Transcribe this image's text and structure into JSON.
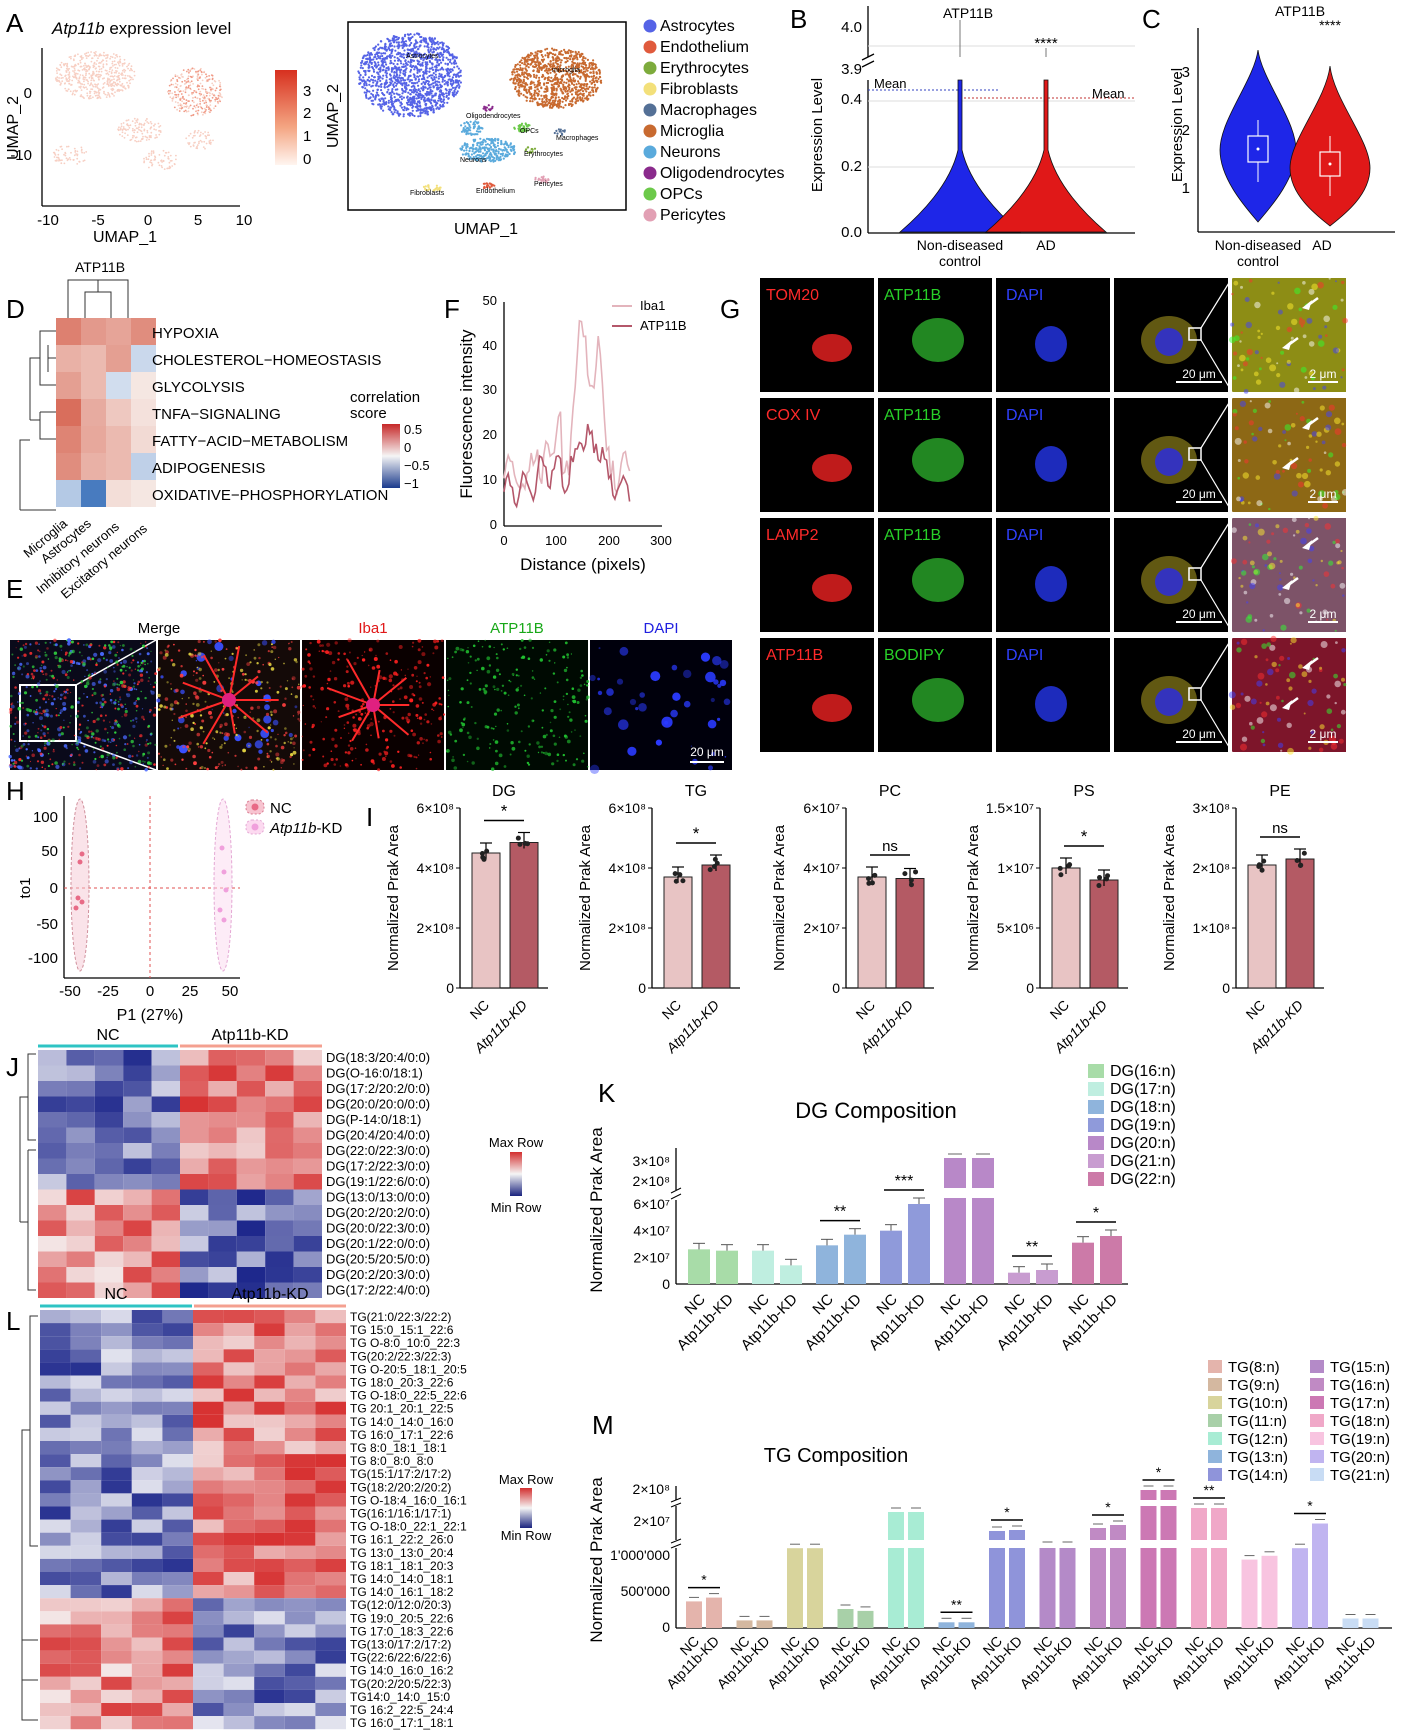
{
  "panelA": {
    "letter": "A",
    "title_gene": "Atp11b",
    "title_rest": " expression level",
    "xlabel": "UMAP_1",
    "ylabel": "UMAP_2",
    "xticks": [
      "-10",
      "-5",
      "0",
      "5",
      "10"
    ],
    "yticks": [
      "0",
      "-10"
    ],
    "colorbar": [
      "3",
      "2",
      "1",
      "0"
    ],
    "umap_xlabel": "UMAP_1",
    "umap_ylabel": "UMAP_2",
    "cluster_labels": [
      "Astrocytes",
      "microglia",
      "Oligodendrocytes",
      "OPCs",
      "Macrophages",
      "Neurons",
      "Erythrocytes",
      "Pericytes",
      "Fibroblasts",
      "Endothelium"
    ],
    "legend": [
      {
        "label": "Astrocytes",
        "color": "#5563e6"
      },
      {
        "label": "Endothelium",
        "color": "#e05a3c"
      },
      {
        "label": "Erythrocytes",
        "color": "#7dab3c"
      },
      {
        "label": "Fibroblasts",
        "color": "#f3e07a"
      },
      {
        "label": "Macrophages",
        "color": "#547096"
      },
      {
        "label": "Microglia",
        "color": "#c86a30"
      },
      {
        "label": "Neurons",
        "color": "#5aaadc"
      },
      {
        "label": "Oligodendrocytes",
        "color": "#8a2a8c"
      },
      {
        "label": "OPCs",
        "color": "#6cc94a"
      },
      {
        "label": "Pericytes",
        "color": "#e2a0b4"
      }
    ]
  },
  "panelB": {
    "letter": "B",
    "title": "ATP11B",
    "ylabel": "Expression Level",
    "yticks_top": [
      "4.0",
      "3.9"
    ],
    "yticks": [
      "0.4",
      "0.2",
      "0.0"
    ],
    "mean_left": "Mean",
    "mean_right": "Mean",
    "sig": "****",
    "groups": [
      "Non-diseased",
      "control",
      "AD"
    ]
  },
  "panelC": {
    "letter": "C",
    "title": "ATP11B",
    "ylabel": "Expression Level",
    "yticks": [
      "3",
      "2",
      "1"
    ],
    "sig": "****",
    "groups": [
      "Non-diseased",
      "control",
      "AD"
    ]
  },
  "panelD": {
    "letter": "D",
    "title": "ATP11B",
    "rows": [
      "HYPOXIA",
      "CHOLESTEROL−HOMEOSTASIS",
      "GLYCOLYSIS",
      "TNFA−SIGNALING",
      "FATTY−ACID−METABOLISM",
      "ADIPOGENESIS",
      "OXIDATIVE−PHOSPHORYLATION"
    ],
    "cols": [
      "Microglia",
      "Astrocytes",
      "Inhibitory neurons",
      "Excitatory neurons"
    ],
    "legend_title1": "correlation",
    "legend_title2": "score",
    "legend_ticks": [
      "0.5",
      "0",
      "−0.5",
      "−1"
    ],
    "values": [
      [
        0.62,
        0.48,
        0.42,
        0.55
      ],
      [
        0.35,
        0.3,
        0.45,
        -0.15
      ],
      [
        0.45,
        0.3,
        -0.12,
        0.05
      ],
      [
        0.72,
        0.38,
        0.22,
        0.08
      ],
      [
        0.6,
        0.4,
        0.3,
        0.12
      ],
      [
        0.55,
        0.35,
        0.3,
        -0.2
      ],
      [
        -0.25,
        -0.75,
        0.1,
        0.05
      ]
    ]
  },
  "panelE": {
    "letter": "E",
    "labels": [
      "Merge",
      "Iba1",
      "ATP11B",
      "DAPI"
    ],
    "scale": "20 μm"
  },
  "panelF": {
    "letter": "F",
    "xlabel": "Distance (pixels)",
    "ylabel": "Fluorescence intensity",
    "xticks": [
      "0",
      "100",
      "200",
      "300"
    ],
    "yticks": [
      "50",
      "40",
      "30",
      "20",
      "10",
      "0"
    ],
    "legend": [
      "Iba1",
      "ATP11B"
    ]
  },
  "panelG": {
    "letter": "G",
    "rows": [
      {
        "a": "TOM20",
        "b": "ATP11B",
        "c": "DAPI"
      },
      {
        "a": "COX IV",
        "b": "ATP11B",
        "c": "DAPI"
      },
      {
        "a": "LAMP2",
        "b": "ATP11B",
        "c": "DAPI"
      },
      {
        "a": "ATP11B",
        "b": "BODIPY",
        "c": "DAPI"
      }
    ],
    "scale_big": "20 μm",
    "scale_small": "2 μm"
  },
  "panelH": {
    "letter": "H",
    "xlabel": "P1 (27%)",
    "ylabel": "to1",
    "xticks": [
      "-50",
      "-25",
      "0",
      "25",
      "50"
    ],
    "yticks": [
      "100",
      "50",
      "0",
      "-50",
      "-100"
    ],
    "legend_nc": "NC",
    "legend_kd_gene": "Atp11b",
    "legend_kd_suffix": "-KD"
  },
  "panelI": {
    "letter": "I",
    "ylabel": "Normalized Prak Area",
    "xcats": [
      "NC",
      "Atp11b-KD"
    ],
    "plots": [
      {
        "title": "DG",
        "yticks": [
          "6×10⁸",
          "4×10⁸",
          "2×10⁸",
          "0"
        ],
        "ymax": 6,
        "values": [
          4.5,
          4.85
        ],
        "sig": "*"
      },
      {
        "title": "TG",
        "yticks": [
          "6×10⁸",
          "4×10⁸",
          "2×10⁸",
          "0"
        ],
        "ymax": 6,
        "values": [
          3.7,
          4.1
        ],
        "sig": "*"
      },
      {
        "title": "PC",
        "yticks": [
          "6×10⁷",
          "4×10⁷",
          "2×10⁷",
          "0"
        ],
        "ymax": 6,
        "values": [
          3.7,
          3.65
        ],
        "sig": "ns"
      },
      {
        "title": "PS",
        "yticks": [
          "1.5×10⁷",
          "1×10⁷",
          "5×10⁶",
          "0"
        ],
        "ymax": 15,
        "values": [
          10.0,
          9.0
        ],
        "sig": "*"
      },
      {
        "title": "PE",
        "yticks": [
          "3×10⁸",
          "2×10⁸",
          "1×10⁸",
          "0"
        ],
        "ymax": 3,
        "values": [
          2.05,
          2.15
        ],
        "sig": "ns"
      }
    ]
  },
  "panelJ": {
    "letter": "J",
    "group_nc": "NC",
    "group_kd": "Atp11b-KD",
    "rows": [
      "DG(18:3/20:4/0:0)",
      "DG(O-16:0/18:1)",
      "DG(17:2/20:2/0:0)",
      "DG(20:0/20:0/0:0)",
      "DG(P-14:0/18:1)",
      "DG(20:4/20:4/0:0)",
      "DG(22:0/22:3/0:0)",
      "DG(17:2/22:3/0:0)",
      "DG(19:1/22:6/0:0)",
      "DG(13:0/13:0/0:0)",
      "DG(20:2/20:2/0:0)",
      "DG(20:0/22:3/0:0)",
      "DG(20:1/22:0/0:0)",
      "DG(20:5/20:5/0:0)",
      "DG(20:2/20:3/0:0)",
      "DG(17:2/22:4/0:0)"
    ],
    "max_label": "Max Row",
    "min_label": "Min Row"
  },
  "panelK": {
    "letter": "K",
    "title": "DG Composition",
    "ylabel": "Normalized Prak Area",
    "yticks_top": [
      "3×10⁸",
      "2×10⁸"
    ],
    "yticks": [
      "6×10⁷",
      "4×10⁷",
      "2×10⁷",
      "0"
    ],
    "legend": [
      "DG(16:n)",
      "DG(17:n)",
      "DG(18:n)",
      "DG(19:n)",
      "DG(20:n)",
      "DG(21:n)",
      "DG(22:n)"
    ],
    "colors": [
      "#a8dca8",
      "#bfeee0",
      "#8fb4dc",
      "#8f9ada",
      "#b888c8",
      "#c89cd0",
      "#cc7aa8"
    ],
    "values_nc": [
      2.6,
      2.5,
      2.9,
      4.0,
      null,
      0.85,
      3.1
    ],
    "values_kd": [
      2.5,
      1.4,
      3.7,
      6.0,
      null,
      1.05,
      3.6
    ],
    "big": [
      3.0,
      3.0
    ],
    "sig": [
      "",
      "",
      "**",
      "***",
      "",
      "**",
      "*"
    ],
    "xcat_nc": "NC",
    "xcat_kd": "Atp11b-KD"
  },
  "panelL": {
    "letter": "L",
    "group_nc": "NC",
    "group_kd": "Atp11b-KD",
    "rows": [
      "TG(21:0/22:3/22:2)",
      "TG 15:0_15:1_22:6",
      "TG O-8:0_10:0_22:3",
      "TG(20:2/22:3/22:3)",
      "TG O-20:5_18:1_20:5",
      "TG 18:0_20:3_22:6",
      "TG O-18:0_22:5_22:6",
      "TG 20:1_20:1_22:5",
      "TG 14:0_14:0_16:0",
      "TG 16:0_17:1_22:6",
      "TG 8:0_18:1_18:1",
      "TG 8:0_8:0_8:0",
      "TG(15:1/17:2/17:2)",
      "TG(18:2/20:2/20:2)",
      "TG O-18:4_16:0_16:1",
      "TG(16:1/16:1/17:1)",
      "TG O-18:0_22:1_22:1",
      "TG 16:1_22:2_26:0",
      "TG 13:0_13:0_20:4",
      "TG 18:1_18:1_20:3",
      "TG 14:0_14:0_18:1",
      "TG 14:0_16:1_18:2",
      "TG(12:0/12:0/20:3)",
      "TG 19:0_20:5_22:6",
      "TG 17:0_18:3_22:6",
      "TG(13:0/17:2/17:2)",
      "TG(22:6/22:6/22:6)",
      "TG 14:0_16:0_16:2",
      "TG(20:2/20:5/22:3)",
      "TG14:0_14:0_15:0",
      "TG 16:2_22:5_24:4",
      "TG 16:0_17:1_18:1"
    ],
    "max_label": "Max Row",
    "min_label": "Min Row"
  },
  "panelM": {
    "letter": "M",
    "title": "TG Composition",
    "ylabel": "Normalized Prak Area",
    "yticks_top": [
      "2×10⁸"
    ],
    "yticks_mid": [
      "2×10⁷"
    ],
    "yticks": [
      "1'000'000",
      "500'000",
      "0"
    ],
    "legend": [
      "TG(8:n)",
      "TG(9:n)",
      "TG(10:n)",
      "TG(11:n)",
      "TG(12:n)",
      "TG(13:n)",
      "TG(14:n)",
      "TG(15:n)",
      "TG(16:n)",
      "TG(17:n)",
      "TG(18:n)",
      "TG(19:n)",
      "TG(20:n)",
      "TG(21:n)"
    ],
    "colors": [
      "#e4b4ac",
      "#d4b8a0",
      "#d8d49c",
      "#a8d0a8",
      "#a8ecd4",
      "#8fb4dc",
      "#8f94da",
      "#b48ac8",
      "#c08ac4",
      "#cc78b4",
      "#f0a8c8",
      "#f8c4e0",
      "#c0b4f0",
      "#c8dcf4"
    ],
    "sig": [
      "*",
      "",
      "",
      "",
      "",
      "**",
      "*",
      "",
      "*",
      "*",
      "**",
      "",
      "*",
      ""
    ],
    "xcat_nc": "NC",
    "xcat_kd": "Atp11b-KD"
  }
}
